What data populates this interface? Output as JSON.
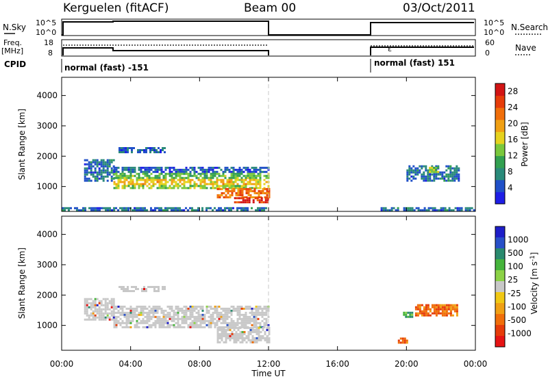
{
  "header": {
    "station": "Kerguelen (fitACF)",
    "beam": "Beam 00",
    "date": "03/Oct/2011"
  },
  "status_panel": {
    "nsky_label": "N.Sky",
    "nsky_ticks": [
      "10^5",
      "10^0"
    ],
    "nsearch_label": "N.Search",
    "nsearch_ticks": [
      "10^5",
      "10^0"
    ],
    "freq_label": "Freq.",
    "freq_unit": "[MHz]",
    "freq_ticks": [
      "18",
      "8"
    ],
    "nave_label": "Nave",
    "nave_ticks": [
      "60",
      "0"
    ],
    "cpid_label": "CPID",
    "cpid_left": "normal (fast) -151",
    "cpid_right": "normal (fast) 151"
  },
  "colors": {
    "power": [
      "#1e1ee6",
      "#2050c8",
      "#2a8a7a",
      "#32a050",
      "#7ac83c",
      "#e6d21e",
      "#f0a014",
      "#f06e0a",
      "#e63c0a",
      "#d21414"
    ],
    "velocity": [
      "#1e1ec8",
      "#2850c8",
      "#2a8a6e",
      "#46b43c",
      "#8cd246",
      "#c8c8c8",
      "#f0c814",
      "#f0a014",
      "#f06e0a",
      "#e63c0a",
      "#e61414"
    ]
  },
  "chart_data": [
    {
      "type": "heatmap",
      "name": "power",
      "ylabel": "Slant Range [km]",
      "xlabel": "Time UT",
      "x_ticks": [
        "00:00",
        "04:00",
        "08:00",
        "12:00",
        "16:00",
        "20:00",
        "00:00"
      ],
      "x_range_hours": [
        0,
        24
      ],
      "y_ticks": [
        1000,
        2000,
        3000,
        4000
      ],
      "ylim": [
        180,
        4600
      ],
      "colorbar_label": "Power [dB]",
      "colorbar_ticks": [
        4,
        8,
        12,
        16,
        20,
        24,
        28
      ],
      "colorbar_range": [
        0,
        30
      ],
      "data_gap_hours": [
        12,
        18
      ],
      "regions": [
        {
          "t0": 0.0,
          "t1": 12.0,
          "r0": 200,
          "r1": 320,
          "value": 6
        },
        {
          "t0": 1.3,
          "t1": 3.0,
          "r0": 1200,
          "r1": 1900,
          "value": 6
        },
        {
          "t0": 3.0,
          "t1": 12.0,
          "r0": 1450,
          "r1": 1650,
          "value": 5
        },
        {
          "t0": 3.0,
          "t1": 12.0,
          "r0": 1250,
          "r1": 1450,
          "value": 12
        },
        {
          "t0": 3.0,
          "t1": 12.0,
          "r0": 1050,
          "r1": 1250,
          "value": 18
        },
        {
          "t0": 3.0,
          "t1": 12.0,
          "r0": 950,
          "r1": 1050,
          "value": 14
        },
        {
          "t0": 3.3,
          "t1": 6.0,
          "r0": 2100,
          "r1": 2300,
          "value": 5
        },
        {
          "t0": 9.0,
          "t1": 12.0,
          "r0": 650,
          "r1": 950,
          "value": 22
        },
        {
          "t0": 10.0,
          "t1": 12.0,
          "r0": 450,
          "r1": 650,
          "value": 26
        },
        {
          "t0": 20.0,
          "t1": 23.0,
          "r0": 1200,
          "r1": 1700,
          "value": 6
        },
        {
          "t0": 21.3,
          "t1": 21.8,
          "r0": 1450,
          "r1": 1650,
          "value": 14
        },
        {
          "t0": 18.5,
          "t1": 24.0,
          "r0": 200,
          "r1": 320,
          "value": 6
        }
      ]
    },
    {
      "type": "heatmap",
      "name": "velocity",
      "ylabel": "Slant Range [km]",
      "xlabel": "Time UT",
      "x_ticks": [
        "00:00",
        "04:00",
        "08:00",
        "12:00",
        "16:00",
        "20:00",
        "00:00"
      ],
      "x_range_hours": [
        0,
        24
      ],
      "y_ticks": [
        1000,
        2000,
        3000,
        4000
      ],
      "ylim": [
        180,
        4600
      ],
      "colorbar_label": "Velocity [m s^-1]",
      "colorbar_ticks": [
        "1000",
        "500",
        "100",
        "25",
        "-25",
        "-100",
        "-500",
        "-1000"
      ],
      "data_gap_hours": [
        12,
        18
      ],
      "regions": [
        {
          "t0": 3.0,
          "t1": 12.0,
          "r0": 950,
          "r1": 1650,
          "value": 0
        },
        {
          "t0": 1.3,
          "t1": 3.0,
          "r0": 1200,
          "r1": 1900,
          "value": 0
        },
        {
          "t0": 3.3,
          "t1": 6.0,
          "r0": 2100,
          "r1": 2300,
          "value": 0
        },
        {
          "t0": 9.0,
          "t1": 12.0,
          "r0": 450,
          "r1": 950,
          "value": 0
        },
        {
          "t0": 20.5,
          "t1": 23.0,
          "r0": 1300,
          "r1": 1700,
          "value": -400
        },
        {
          "t0": 19.8,
          "t1": 20.3,
          "r0": 1300,
          "r1": 1450,
          "value": 200
        },
        {
          "t0": 19.5,
          "t1": 20.0,
          "r0": 450,
          "r1": 600,
          "value": -250
        }
      ]
    }
  ]
}
